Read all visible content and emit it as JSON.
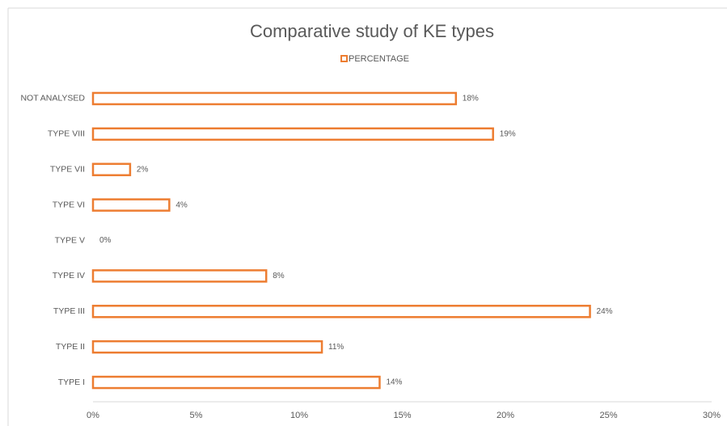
{
  "chart_data": {
    "type": "bar",
    "orientation": "horizontal",
    "title": "Comparative study of KE types",
    "categories": [
      "TYPE I",
      "TYPE II",
      "TYPE III",
      "TYPE IV",
      "TYPE V",
      "TYPE VI",
      "TYPE VII",
      "TYPE VIII",
      "NOT ANALYSED"
    ],
    "series": [
      {
        "name": "PERCENTAGE",
        "color": "#ed7d31",
        "values": [
          13.9,
          11.1,
          24.1,
          8.4,
          0,
          3.7,
          1.8,
          19.4,
          17.6
        ],
        "value_labels": [
          "14%",
          "11%",
          "24%",
          "8%",
          "0%",
          "4%",
          "2%",
          "19%",
          "18%"
        ]
      }
    ],
    "xlim": [
      0,
      30
    ],
    "xticks": [
      {
        "value": 0,
        "label": "0%"
      },
      {
        "value": 5,
        "label": "5%"
      },
      {
        "value": 10,
        "label": "10%"
      },
      {
        "value": 15,
        "label": "15%"
      },
      {
        "value": 20,
        "label": "20%"
      },
      {
        "value": 25,
        "label": "25%"
      },
      {
        "value": 30,
        "label": "30%"
      }
    ],
    "legend": "top"
  }
}
